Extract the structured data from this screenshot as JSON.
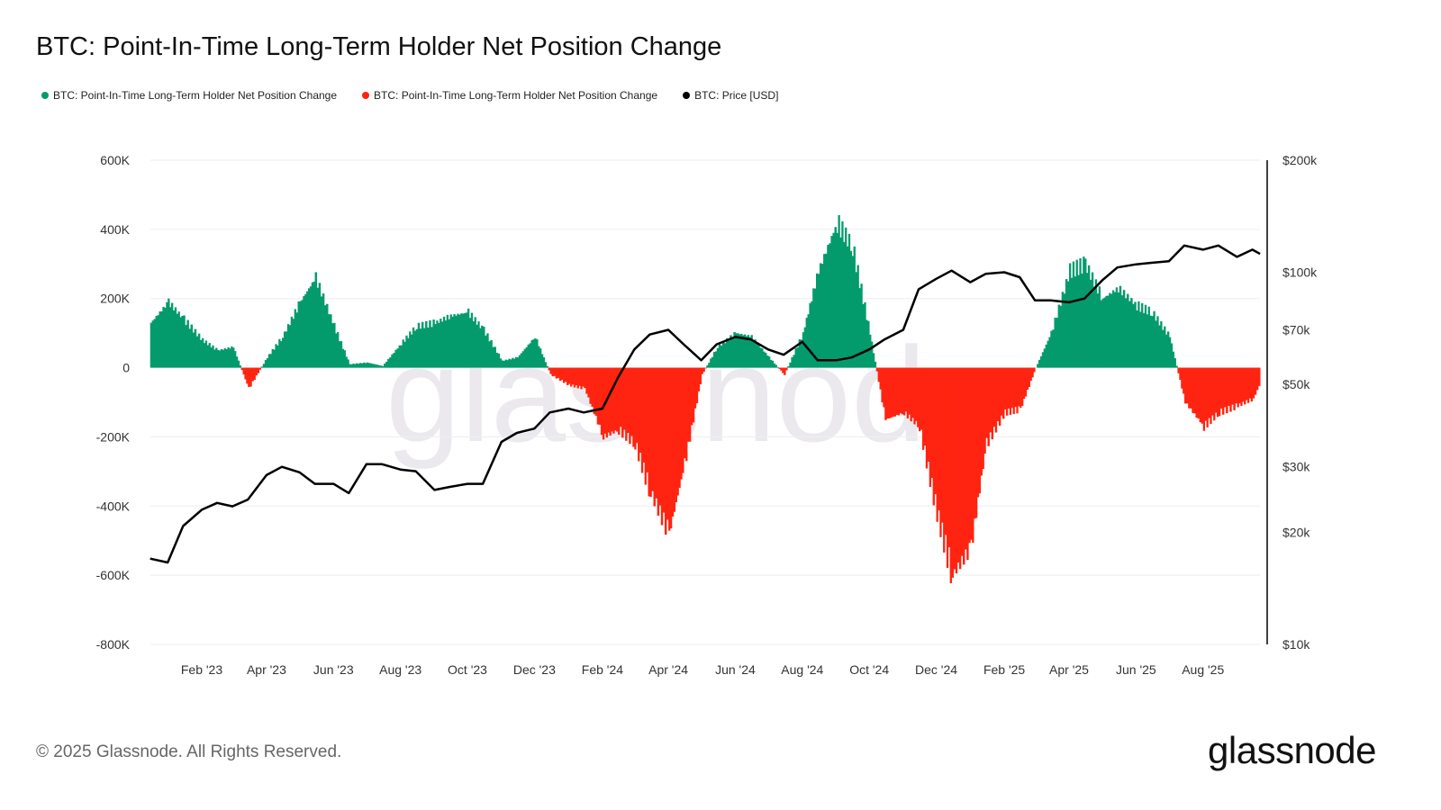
{
  "chart_data": {
    "type": "bar",
    "title": "BTC: Point-In-Time Long-Term Holder Net Position Change",
    "legend": [
      {
        "label": "BTC: Point-In-Time Long-Term Holder Net Position Change",
        "color": "#049b6c"
      },
      {
        "label": "BTC: Point-In-Time Long-Term Holder Net Position Change",
        "color": "#ff2411"
      },
      {
        "label": "BTC: Price [USD]",
        "color": "#000000"
      }
    ],
    "legend_placement": "top-left",
    "y_left": {
      "ticks": [
        "600K",
        "400K",
        "200K",
        "0",
        "-200K",
        "-400K",
        "-600K",
        "-800K"
      ],
      "range": [
        -800000,
        600000
      ]
    },
    "y_right": {
      "ticks": [
        "$200k",
        "$100k",
        "$70k",
        "$50k",
        "$30k",
        "$20k",
        "$10k"
      ],
      "tick_values": [
        200000,
        100000,
        70000,
        50000,
        30000,
        20000,
        10000
      ],
      "range": [
        10000,
        200000
      ],
      "scale": "log"
    },
    "x_ticks": [
      {
        "label": "Feb '23",
        "date": "2023-02-01"
      },
      {
        "label": "Apr '23",
        "date": "2023-04-01"
      },
      {
        "label": "Jun '23",
        "date": "2023-06-01"
      },
      {
        "label": "Aug '23",
        "date": "2023-08-01"
      },
      {
        "label": "Oct '23",
        "date": "2023-10-01"
      },
      {
        "label": "Dec '23",
        "date": "2023-12-01"
      },
      {
        "label": "Feb '24",
        "date": "2024-02-01"
      },
      {
        "label": "Apr '24",
        "date": "2024-04-01"
      },
      {
        "label": "Jun '24",
        "date": "2024-06-01"
      },
      {
        "label": "Aug '24",
        "date": "2024-08-01"
      },
      {
        "label": "Oct '24",
        "date": "2024-10-01"
      },
      {
        "label": "Dec '24",
        "date": "2024-12-01"
      },
      {
        "label": "Feb '25",
        "date": "2025-02-01"
      },
      {
        "label": "Apr '25",
        "date": "2025-04-01"
      },
      {
        "label": "Jun '25",
        "date": "2025-06-01"
      },
      {
        "label": "Aug '25",
        "date": "2025-08-01"
      }
    ],
    "grid": true,
    "positive_color": "#049b6c",
    "negative_color": "#ff2411",
    "price_color": "#000000",
    "dates": [
      "2022-12-16",
      "2023-01-01",
      "2023-01-15",
      "2023-02-01",
      "2023-02-15",
      "2023-03-01",
      "2023-03-15",
      "2023-04-01",
      "2023-04-15",
      "2023-05-01",
      "2023-05-15",
      "2023-06-01",
      "2023-06-15",
      "2023-07-01",
      "2023-07-15",
      "2023-08-01",
      "2023-08-15",
      "2023-09-01",
      "2023-09-15",
      "2023-10-01",
      "2023-10-15",
      "2023-11-01",
      "2023-11-15",
      "2023-12-01",
      "2023-12-15",
      "2024-01-01",
      "2024-01-15",
      "2024-02-01",
      "2024-02-15",
      "2024-03-01",
      "2024-03-15",
      "2024-04-01",
      "2024-04-15",
      "2024-05-01",
      "2024-05-15",
      "2024-06-01",
      "2024-06-15",
      "2024-07-01",
      "2024-07-15",
      "2024-08-01",
      "2024-08-15",
      "2024-09-01",
      "2024-09-15",
      "2024-10-01",
      "2024-10-15",
      "2024-11-01",
      "2024-11-15",
      "2024-12-01",
      "2024-12-15",
      "2025-01-01",
      "2025-01-15",
      "2025-02-01",
      "2025-02-15",
      "2025-03-01",
      "2025-03-15",
      "2025-04-01",
      "2025-04-15",
      "2025-05-01",
      "2025-05-15",
      "2025-06-01",
      "2025-06-15",
      "2025-07-01",
      "2025-07-15",
      "2025-08-01",
      "2025-08-15",
      "2025-09-01",
      "2025-09-15",
      "2025-09-22"
    ],
    "series": [
      {
        "name": "BTC: Point-In-Time Long-Term Holder Net Position Change",
        "axis": "left",
        "values": [
          130000,
          190000,
          140000,
          80000,
          50000,
          60000,
          -60000,
          30000,
          90000,
          190000,
          260000,
          120000,
          10000,
          15000,
          5000,
          70000,
          120000,
          130000,
          150000,
          160000,
          110000,
          20000,
          30000,
          90000,
          -20000,
          -50000,
          -60000,
          -200000,
          -180000,
          -220000,
          -360000,
          -480000,
          -280000,
          -20000,
          60000,
          100000,
          90000,
          30000,
          -20000,
          100000,
          280000,
          420000,
          350000,
          100000,
          -150000,
          -130000,
          -170000,
          -420000,
          -600000,
          -520000,
          -220000,
          -130000,
          -120000,
          0,
          100000,
          280000,
          300000,
          200000,
          230000,
          180000,
          160000,
          90000,
          -100000,
          -170000,
          -130000,
          -110000,
          -90000,
          -40000
        ]
      },
      {
        "name": "BTC: Price [USD]",
        "axis": "right",
        "values": [
          17000,
          16600,
          20800,
          23000,
          24000,
          23500,
          24500,
          28500,
          30000,
          29000,
          27000,
          27000,
          25500,
          30500,
          30500,
          29500,
          29200,
          26000,
          26500,
          27000,
          27000,
          35000,
          37000,
          38000,
          42000,
          43000,
          42000,
          43000,
          52000,
          62000,
          68000,
          70000,
          64000,
          58000,
          64000,
          67000,
          66000,
          62000,
          60000,
          65000,
          58000,
          58000,
          59000,
          62000,
          66000,
          70000,
          90000,
          96000,
          101000,
          94000,
          99000,
          100000,
          97000,
          84000,
          84000,
          83000,
          85000,
          95000,
          103000,
          105000,
          106000,
          107000,
          118000,
          115000,
          118000,
          110000,
          115000,
          112000
        ]
      }
    ]
  },
  "watermark": "glassnode",
  "footer": {
    "copyright": "© 2025 Glassnode. All Rights Reserved.",
    "logo": "glassnode"
  }
}
